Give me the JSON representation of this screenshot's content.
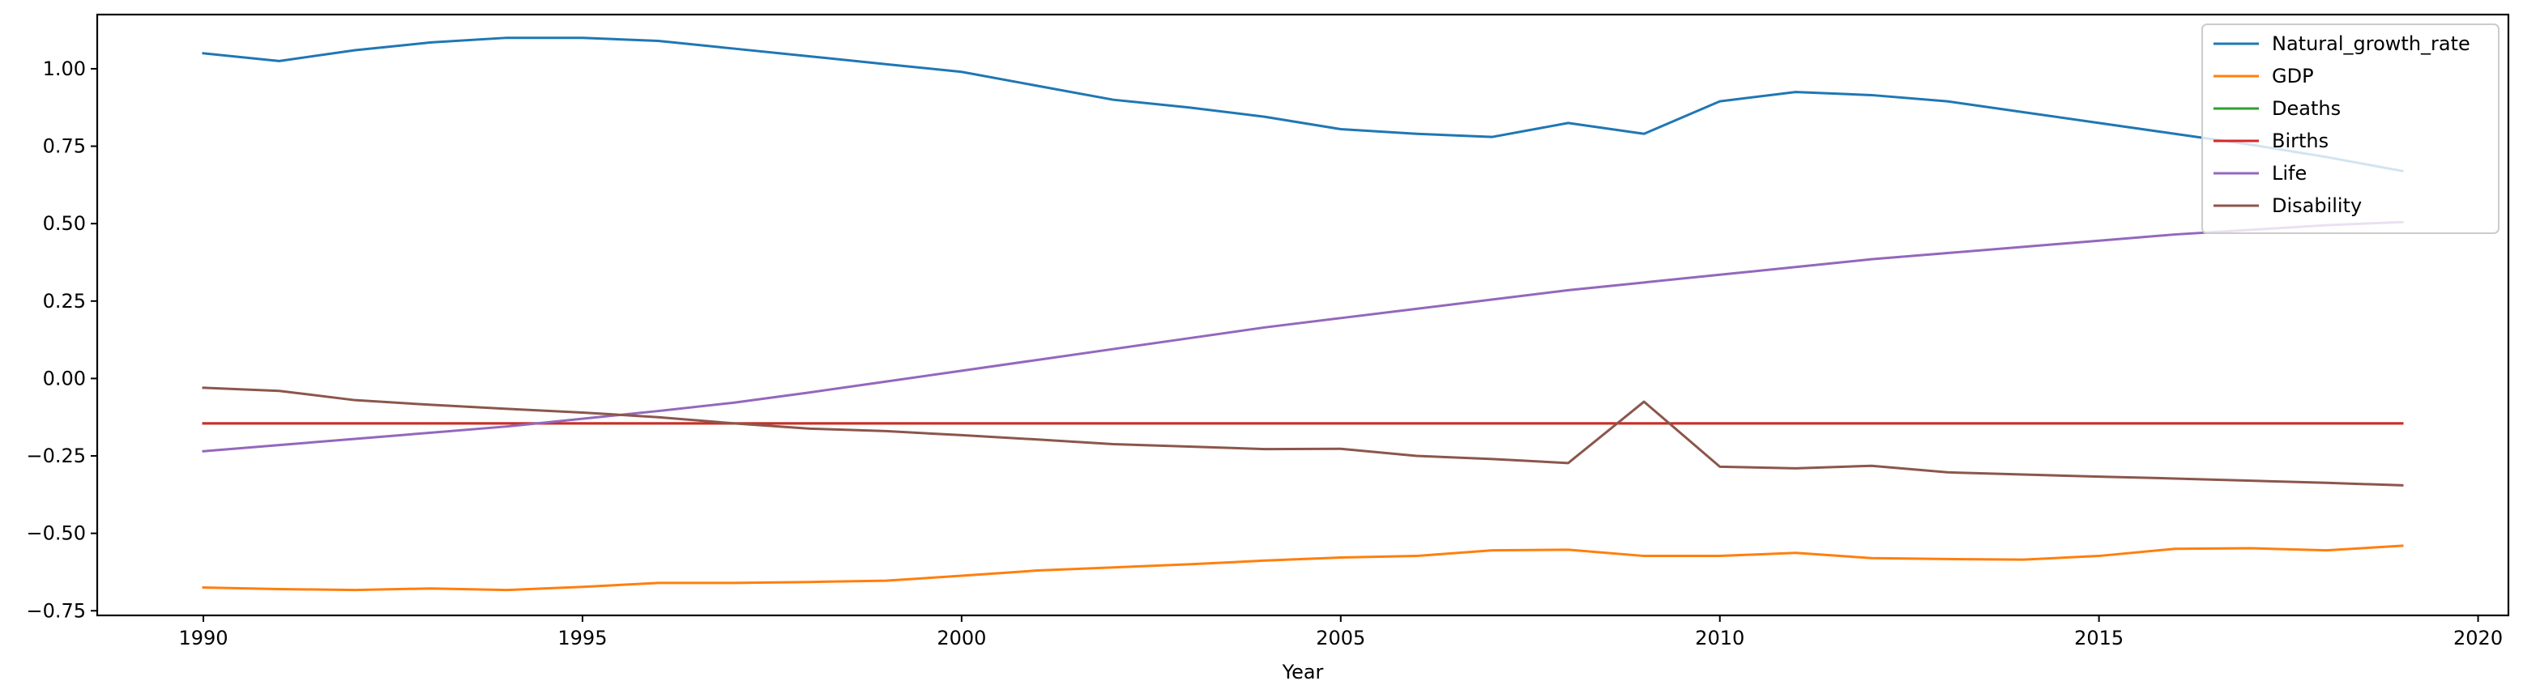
{
  "chart_data": {
    "type": "line",
    "title": "",
    "xlabel": "Year",
    "ylabel": "",
    "xlim": [
      1988.6,
      2020.4
    ],
    "ylim": [
      -0.765,
      1.175
    ],
    "xticks": [
      1990,
      1995,
      2000,
      2005,
      2010,
      2015,
      2020
    ],
    "yticks": [
      1.0,
      0.75,
      0.5,
      0.25,
      0.0,
      -0.25,
      -0.5,
      -0.75
    ],
    "ytick_labels": [
      "1.00",
      "0.75",
      "0.50",
      "0.25",
      "0.00",
      "−0.25",
      "−0.50",
      "−0.75"
    ],
    "grid": false,
    "legend_position": "top-right",
    "x": [
      1990,
      1991,
      1992,
      1993,
      1994,
      1995,
      1996,
      1997,
      1998,
      1999,
      2000,
      2001,
      2002,
      2003,
      2004,
      2005,
      2006,
      2007,
      2008,
      2009,
      2010,
      2011,
      2012,
      2013,
      2014,
      2015,
      2016,
      2017,
      2018,
      2019
    ],
    "series": [
      {
        "name": "Natural_growth_rate",
        "color": "#1f77b4",
        "values": [
          1.05,
          1.025,
          1.06,
          1.085,
          1.1,
          1.1,
          1.09,
          1.065,
          1.04,
          1.015,
          0.99,
          0.945,
          0.9,
          0.875,
          0.845,
          0.805,
          0.79,
          0.78,
          0.825,
          0.79,
          0.895,
          0.925,
          0.915,
          0.895,
          0.86,
          0.825,
          0.79,
          0.755,
          0.715,
          0.67
        ]
      },
      {
        "name": "GDP",
        "color": "#ff7f0e",
        "values": [
          -0.675,
          -0.68,
          -0.683,
          -0.678,
          -0.683,
          -0.673,
          -0.66,
          -0.66,
          -0.657,
          -0.653,
          -0.637,
          -0.62,
          -0.61,
          -0.6,
          -0.588,
          -0.578,
          -0.573,
          -0.555,
          -0.553,
          -0.573,
          -0.573,
          -0.563,
          -0.58,
          -0.583,
          -0.585,
          -0.573,
          -0.55,
          -0.548,
          -0.555,
          -0.54
        ]
      },
      {
        "name": "Deaths",
        "color": "#2ca02c",
        "values": [
          -0.145,
          -0.145,
          -0.145,
          -0.145,
          -0.145,
          -0.145,
          -0.145,
          -0.145,
          -0.145,
          -0.145,
          -0.145,
          -0.145,
          -0.145,
          -0.145,
          -0.145,
          -0.145,
          -0.145,
          -0.145,
          -0.145,
          -0.145,
          -0.145,
          -0.145,
          -0.145,
          -0.145,
          -0.145,
          -0.145,
          -0.145,
          -0.145,
          -0.145,
          -0.145
        ]
      },
      {
        "name": "Births",
        "color": "#d62728",
        "values": [
          -0.145,
          -0.145,
          -0.145,
          -0.145,
          -0.145,
          -0.145,
          -0.145,
          -0.145,
          -0.145,
          -0.145,
          -0.145,
          -0.145,
          -0.145,
          -0.145,
          -0.145,
          -0.145,
          -0.145,
          -0.145,
          -0.145,
          -0.145,
          -0.145,
          -0.145,
          -0.145,
          -0.145,
          -0.145,
          -0.145,
          -0.145,
          -0.145,
          -0.145,
          -0.145
        ]
      },
      {
        "name": "Life",
        "color": "#9467bd",
        "values": [
          -0.235,
          -0.215,
          -0.195,
          -0.175,
          -0.155,
          -0.13,
          -0.105,
          -0.078,
          -0.045,
          -0.01,
          0.025,
          0.06,
          0.095,
          0.13,
          0.165,
          0.195,
          0.225,
          0.255,
          0.285,
          0.31,
          0.335,
          0.36,
          0.385,
          0.405,
          0.425,
          0.445,
          0.465,
          0.48,
          0.495,
          0.505
        ]
      },
      {
        "name": "Disability",
        "color": "#8c564b",
        "values": [
          -0.03,
          -0.04,
          -0.07,
          -0.085,
          -0.098,
          -0.11,
          -0.125,
          -0.145,
          -0.162,
          -0.17,
          -0.183,
          -0.197,
          -0.212,
          -0.22,
          -0.228,
          -0.227,
          -0.25,
          -0.26,
          -0.273,
          -0.075,
          -0.285,
          -0.29,
          -0.282,
          -0.303,
          -0.31,
          -0.317,
          -0.323,
          -0.33,
          -0.337,
          -0.345
        ]
      }
    ]
  }
}
